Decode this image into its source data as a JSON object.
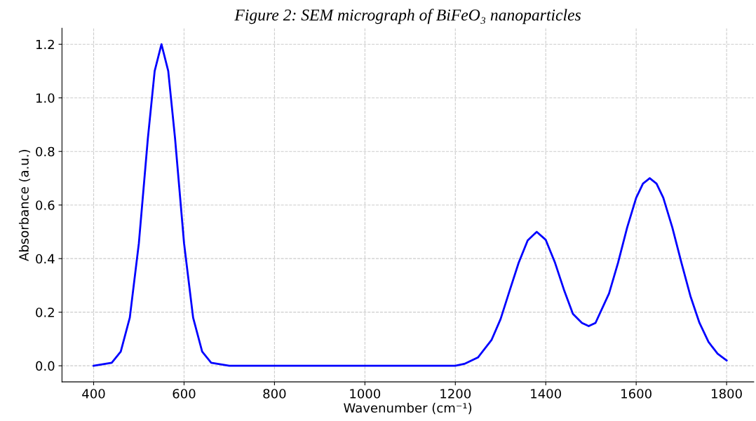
{
  "chart_data": {
    "type": "line",
    "title": "Figure 2: SEM micrograph of BiFeO₃ nanoparticles",
    "xlabel": "Wavenumber (cm⁻¹)",
    "ylabel": "Absorbance (a.u.)",
    "series": [
      {
        "color": "#0000ff",
        "x": [
          400,
          440,
          460,
          480,
          500,
          520,
          535,
          550,
          565,
          580,
          600,
          620,
          640,
          660,
          700,
          1200,
          1220,
          1250,
          1280,
          1300,
          1320,
          1340,
          1360,
          1380,
          1400,
          1420,
          1440,
          1460,
          1480,
          1495,
          1510,
          1540,
          1560,
          1580,
          1600,
          1615,
          1630,
          1645,
          1660,
          1680,
          1700,
          1720,
          1740,
          1760,
          1780,
          1800
        ],
        "values": [
          0.0,
          0.011,
          0.053,
          0.18,
          0.457,
          0.85,
          1.1,
          1.2,
          1.1,
          0.85,
          0.457,
          0.18,
          0.053,
          0.011,
          0.0,
          0.0,
          0.007,
          0.031,
          0.096,
          0.174,
          0.28,
          0.384,
          0.468,
          0.5,
          0.47,
          0.387,
          0.285,
          0.194,
          0.16,
          0.148,
          0.16,
          0.27,
          0.385,
          0.516,
          0.627,
          0.68,
          0.7,
          0.68,
          0.627,
          0.516,
          0.385,
          0.26,
          0.16,
          0.089,
          0.045,
          0.02
        ]
      }
    ],
    "xlim": [
      330,
      1860
    ],
    "ylim": [
      -0.06,
      1.26
    ],
    "xticks": [
      400,
      600,
      800,
      1000,
      1200,
      1400,
      1600,
      1800
    ],
    "yticks": [
      {
        "value": 0,
        "label": "0.0"
      },
      {
        "value": 0.2,
        "label": "0.2"
      },
      {
        "value": 0.4,
        "label": "0.4"
      },
      {
        "value": 0.6,
        "label": "0.6"
      },
      {
        "value": 0.8,
        "label": "0.8"
      },
      {
        "value": 1.0,
        "label": "1.0"
      },
      {
        "value": 1.2,
        "label": "1.2"
      }
    ],
    "grid": true,
    "line_style": "solid"
  }
}
